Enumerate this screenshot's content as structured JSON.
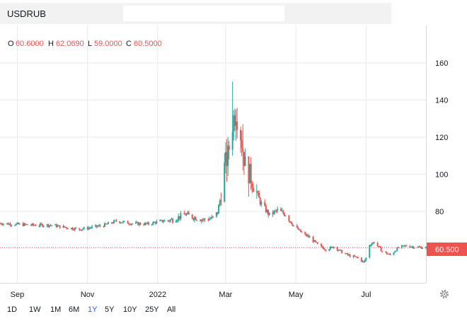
{
  "symbol": {
    "value": "USDRUB"
  },
  "ohlc": {
    "o_label": "O",
    "o_value": "60.6000",
    "h_label": "H",
    "h_value": "62.0690",
    "l_label": "L",
    "l_value": "59.0000",
    "c_label": "C",
    "c_value": "60.5000"
  },
  "price_tag": "60.500",
  "ranges": [
    "1D",
    "1W",
    "1M",
    "6M",
    "1Y",
    "5Y",
    "10Y",
    "25Y",
    "All"
  ],
  "active_range": "1Y",
  "colors": {
    "up": "#26a69a",
    "down": "#ef5350",
    "price_line": "#ef5350",
    "grid": "#eaeaea",
    "text": "#131722",
    "active": "#2962ff"
  },
  "icons": {
    "settings": "gear-icon"
  },
  "chart_data": {
    "type": "candlestick",
    "title": "USDRUB",
    "x_ticks": [
      "Sep",
      "Nov",
      "2022",
      "Mar",
      "May",
      "Jul"
    ],
    "y_ticks": [
      80,
      100,
      120,
      140,
      160
    ],
    "ylim": [
      45,
      175
    ],
    "x_range": [
      "2021-08-17",
      "2022-08-22"
    ],
    "grid": true,
    "current_price": 60.5,
    "path": [
      [
        "2021-08-17",
        73.6
      ],
      [
        "2021-09-01",
        73.0
      ],
      [
        "2021-09-15",
        72.6
      ],
      [
        "2021-10-01",
        72.6
      ],
      [
        "2021-10-15",
        71.2
      ],
      [
        "2021-10-25",
        70.4
      ],
      [
        "2021-11-01",
        71.0
      ],
      [
        "2021-11-15",
        72.5
      ],
      [
        "2021-11-26",
        74.8
      ],
      [
        "2021-12-10",
        73.5
      ],
      [
        "2021-12-24",
        73.2
      ],
      [
        "2022-01-01",
        74.5
      ],
      [
        "2022-01-14",
        75.5
      ],
      [
        "2022-01-25",
        78.5
      ],
      [
        "2022-01-31",
        77.0
      ],
      [
        "2022-02-10",
        75.5
      ],
      [
        "2022-02-18",
        76.5
      ],
      [
        "2022-02-22",
        79.5
      ],
      [
        "2022-02-24",
        86.0
      ],
      [
        "2022-02-28",
        104.0
      ],
      [
        "2022-03-03",
        110.0
      ],
      [
        "2022-03-07",
        128.0
      ],
      [
        "2022-03-10",
        135.0
      ],
      [
        "2022-03-14",
        122.0
      ],
      [
        "2022-03-18",
        105.0
      ],
      [
        "2022-03-24",
        97.0
      ],
      [
        "2022-03-31",
        85.0
      ],
      [
        "2022-04-08",
        78.0
      ],
      [
        "2022-04-15",
        80.5
      ],
      [
        "2022-04-22",
        78.5
      ],
      [
        "2022-04-28",
        73.0
      ],
      [
        "2022-05-06",
        68.5
      ],
      [
        "2022-05-13",
        66.0
      ],
      [
        "2022-05-20",
        62.0
      ],
      [
        "2022-05-27",
        59.5
      ],
      [
        "2022-06-03",
        61.0
      ],
      [
        "2022-06-10",
        58.0
      ],
      [
        "2022-06-17",
        56.0
      ],
      [
        "2022-06-24",
        55.0
      ],
      [
        "2022-06-29",
        52.5
      ],
      [
        "2022-07-01",
        55.0
      ],
      [
        "2022-07-04",
        62.0
      ],
      [
        "2022-07-08",
        63.5
      ],
      [
        "2022-07-15",
        58.5
      ],
      [
        "2022-07-22",
        56.5
      ],
      [
        "2022-07-29",
        60.5
      ],
      [
        "2022-08-05",
        61.5
      ],
      [
        "2022-08-12",
        60.8
      ],
      [
        "2022-08-22",
        60.5
      ]
    ],
    "spikes": [
      [
        "2022-03-07",
        150.0,
        110.0
      ],
      [
        "2022-03-10",
        135.0,
        118.0
      ],
      [
        "2022-03-02",
        119.0,
        96.0
      ],
      [
        "2022-03-16",
        127.0,
        102.0
      ],
      [
        "2022-03-21",
        106.0,
        88.0
      ]
    ]
  }
}
